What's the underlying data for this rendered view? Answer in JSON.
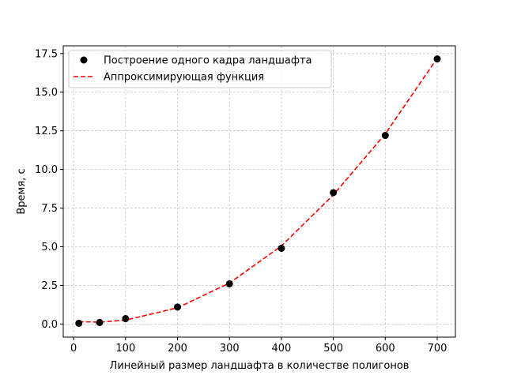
{
  "chart_data": {
    "type": "scatter",
    "xlabel": "Линейный размер ландшафта в количестве полигонов",
    "ylabel": "Время, с",
    "xlim": [
      -20,
      735
    ],
    "ylim": [
      -0.85,
      18.0
    ],
    "grid": true,
    "legend_position": "top-left",
    "x_ticks": [
      0,
      100,
      200,
      300,
      400,
      500,
      600,
      700
    ],
    "y_ticks": [
      0.0,
      2.5,
      5.0,
      7.5,
      10.0,
      12.5,
      15.0,
      17.5
    ],
    "x_tick_labels": [
      "0",
      "100",
      "200",
      "300",
      "400",
      "500",
      "600",
      "700"
    ],
    "y_tick_labels": [
      "0.0",
      "2.5",
      "5.0",
      "7.5",
      "10.0",
      "12.5",
      "15.0",
      "17.5"
    ],
    "series": [
      {
        "name": "Построение одного кадра ландшафта",
        "type": "scatter",
        "color": "#000000",
        "x": [
          10,
          50,
          100,
          200,
          300,
          400,
          500,
          600,
          700
        ],
        "y": [
          0.05,
          0.1,
          0.35,
          1.1,
          2.6,
          4.9,
          8.5,
          12.2,
          17.15
        ]
      },
      {
        "name": "Аппроксимирующая функция",
        "type": "line",
        "style": "dashed",
        "color": "#ff0000",
        "x": [
          10,
          50,
          100,
          200,
          300,
          400,
          500,
          600,
          700
        ],
        "y": [
          0.15,
          0.12,
          0.25,
          1.05,
          2.65,
          5.05,
          8.35,
          12.3,
          17.2
        ]
      }
    ]
  }
}
